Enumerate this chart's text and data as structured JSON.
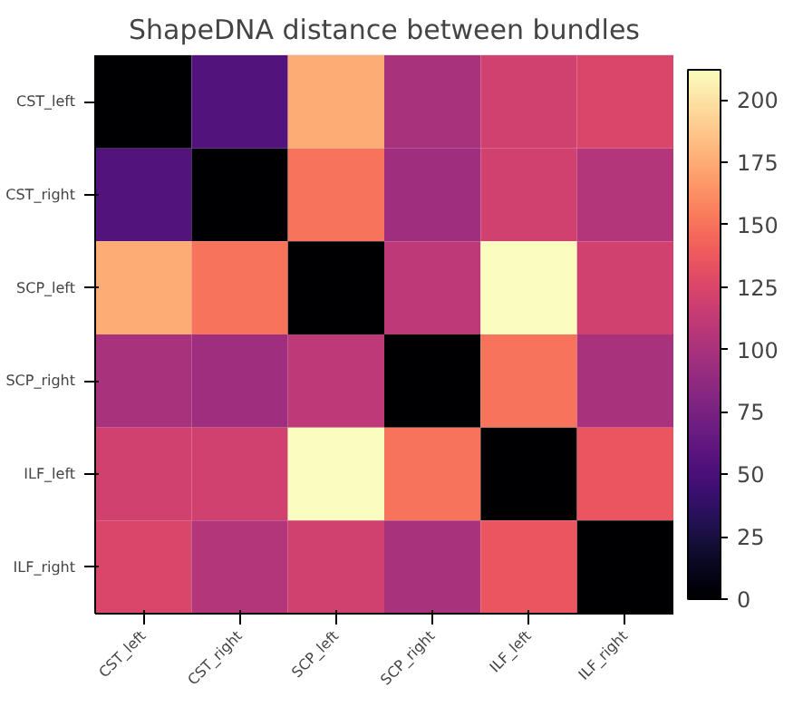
{
  "chart_data": {
    "type": "heatmap",
    "title": "ShapeDNA distance between bundles",
    "categories": [
      "CST_left",
      "CST_right",
      "SCP_left",
      "SCP_right",
      "ILF_left",
      "ILF_right"
    ],
    "y_categories": [
      "CST_left",
      "CST_right",
      "SCP_left",
      "SCP_right",
      "ILF_left",
      "ILF_right"
    ],
    "cells": [
      [
        0,
        55,
        175,
        100,
        120,
        125
      ],
      [
        55,
        0,
        150,
        95,
        120,
        105
      ],
      [
        175,
        150,
        0,
        110,
        212,
        120
      ],
      [
        100,
        95,
        110,
        0,
        150,
        100
      ],
      [
        120,
        120,
        212,
        150,
        0,
        135
      ],
      [
        125,
        105,
        120,
        100,
        135,
        0
      ]
    ],
    "clim": [
      0,
      212
    ],
    "cticks": [
      0,
      25,
      50,
      75,
      100,
      125,
      150,
      175,
      200
    ]
  }
}
